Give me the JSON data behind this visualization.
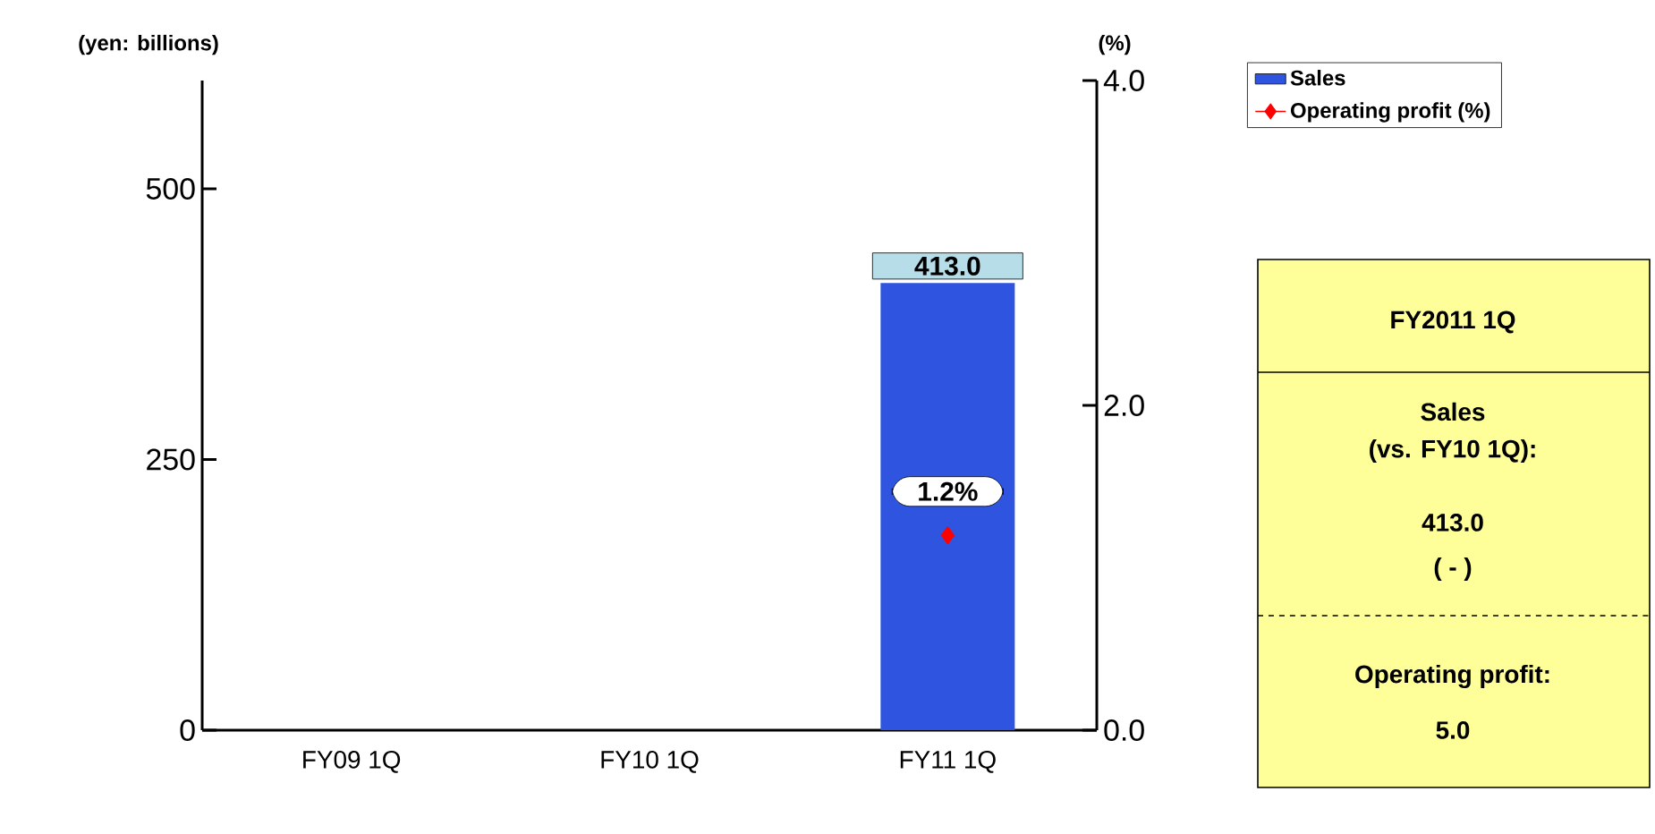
{
  "chart_data": [
    {
      "type": "bar",
      "ylabel": "(yen: billions)",
      "y2label": "(%)",
      "categories": [
        "FY09 1Q",
        "FY10 1Q",
        "FY11 1Q"
      ],
      "series": [
        {
          "name": "Sales",
          "color": "#2f55e0",
          "values": [
            null,
            null,
            413.0
          ],
          "value_labels": [
            null,
            null,
            "413.0"
          ]
        },
        {
          "name": "Operating profit (%)",
          "type": "line",
          "axis": "y2",
          "color": "#ff0000",
          "marker": "diamond",
          "values": [
            null,
            null,
            1.2
          ],
          "value_labels": [
            null,
            null,
            "1.2%"
          ]
        }
      ],
      "ylim": [
        0,
        600
      ],
      "yticks": [
        0,
        250,
        500
      ],
      "y2lim": [
        0,
        4
      ],
      "y2ticks": [
        {
          "value": 0,
          "label": "0.0"
        },
        {
          "value": 2,
          "label": "2.0"
        },
        {
          "value": 4,
          "label": "4.0"
        }
      ],
      "legend": "top right"
    },
    {
      "type": "other",
      "title": "FY2011 1Q",
      "annotations": [
        "Sales",
        "(vs. FY10 1Q):",
        "413.0",
        "( - )",
        "Operating profit:",
        "5.0"
      ]
    }
  ]
}
